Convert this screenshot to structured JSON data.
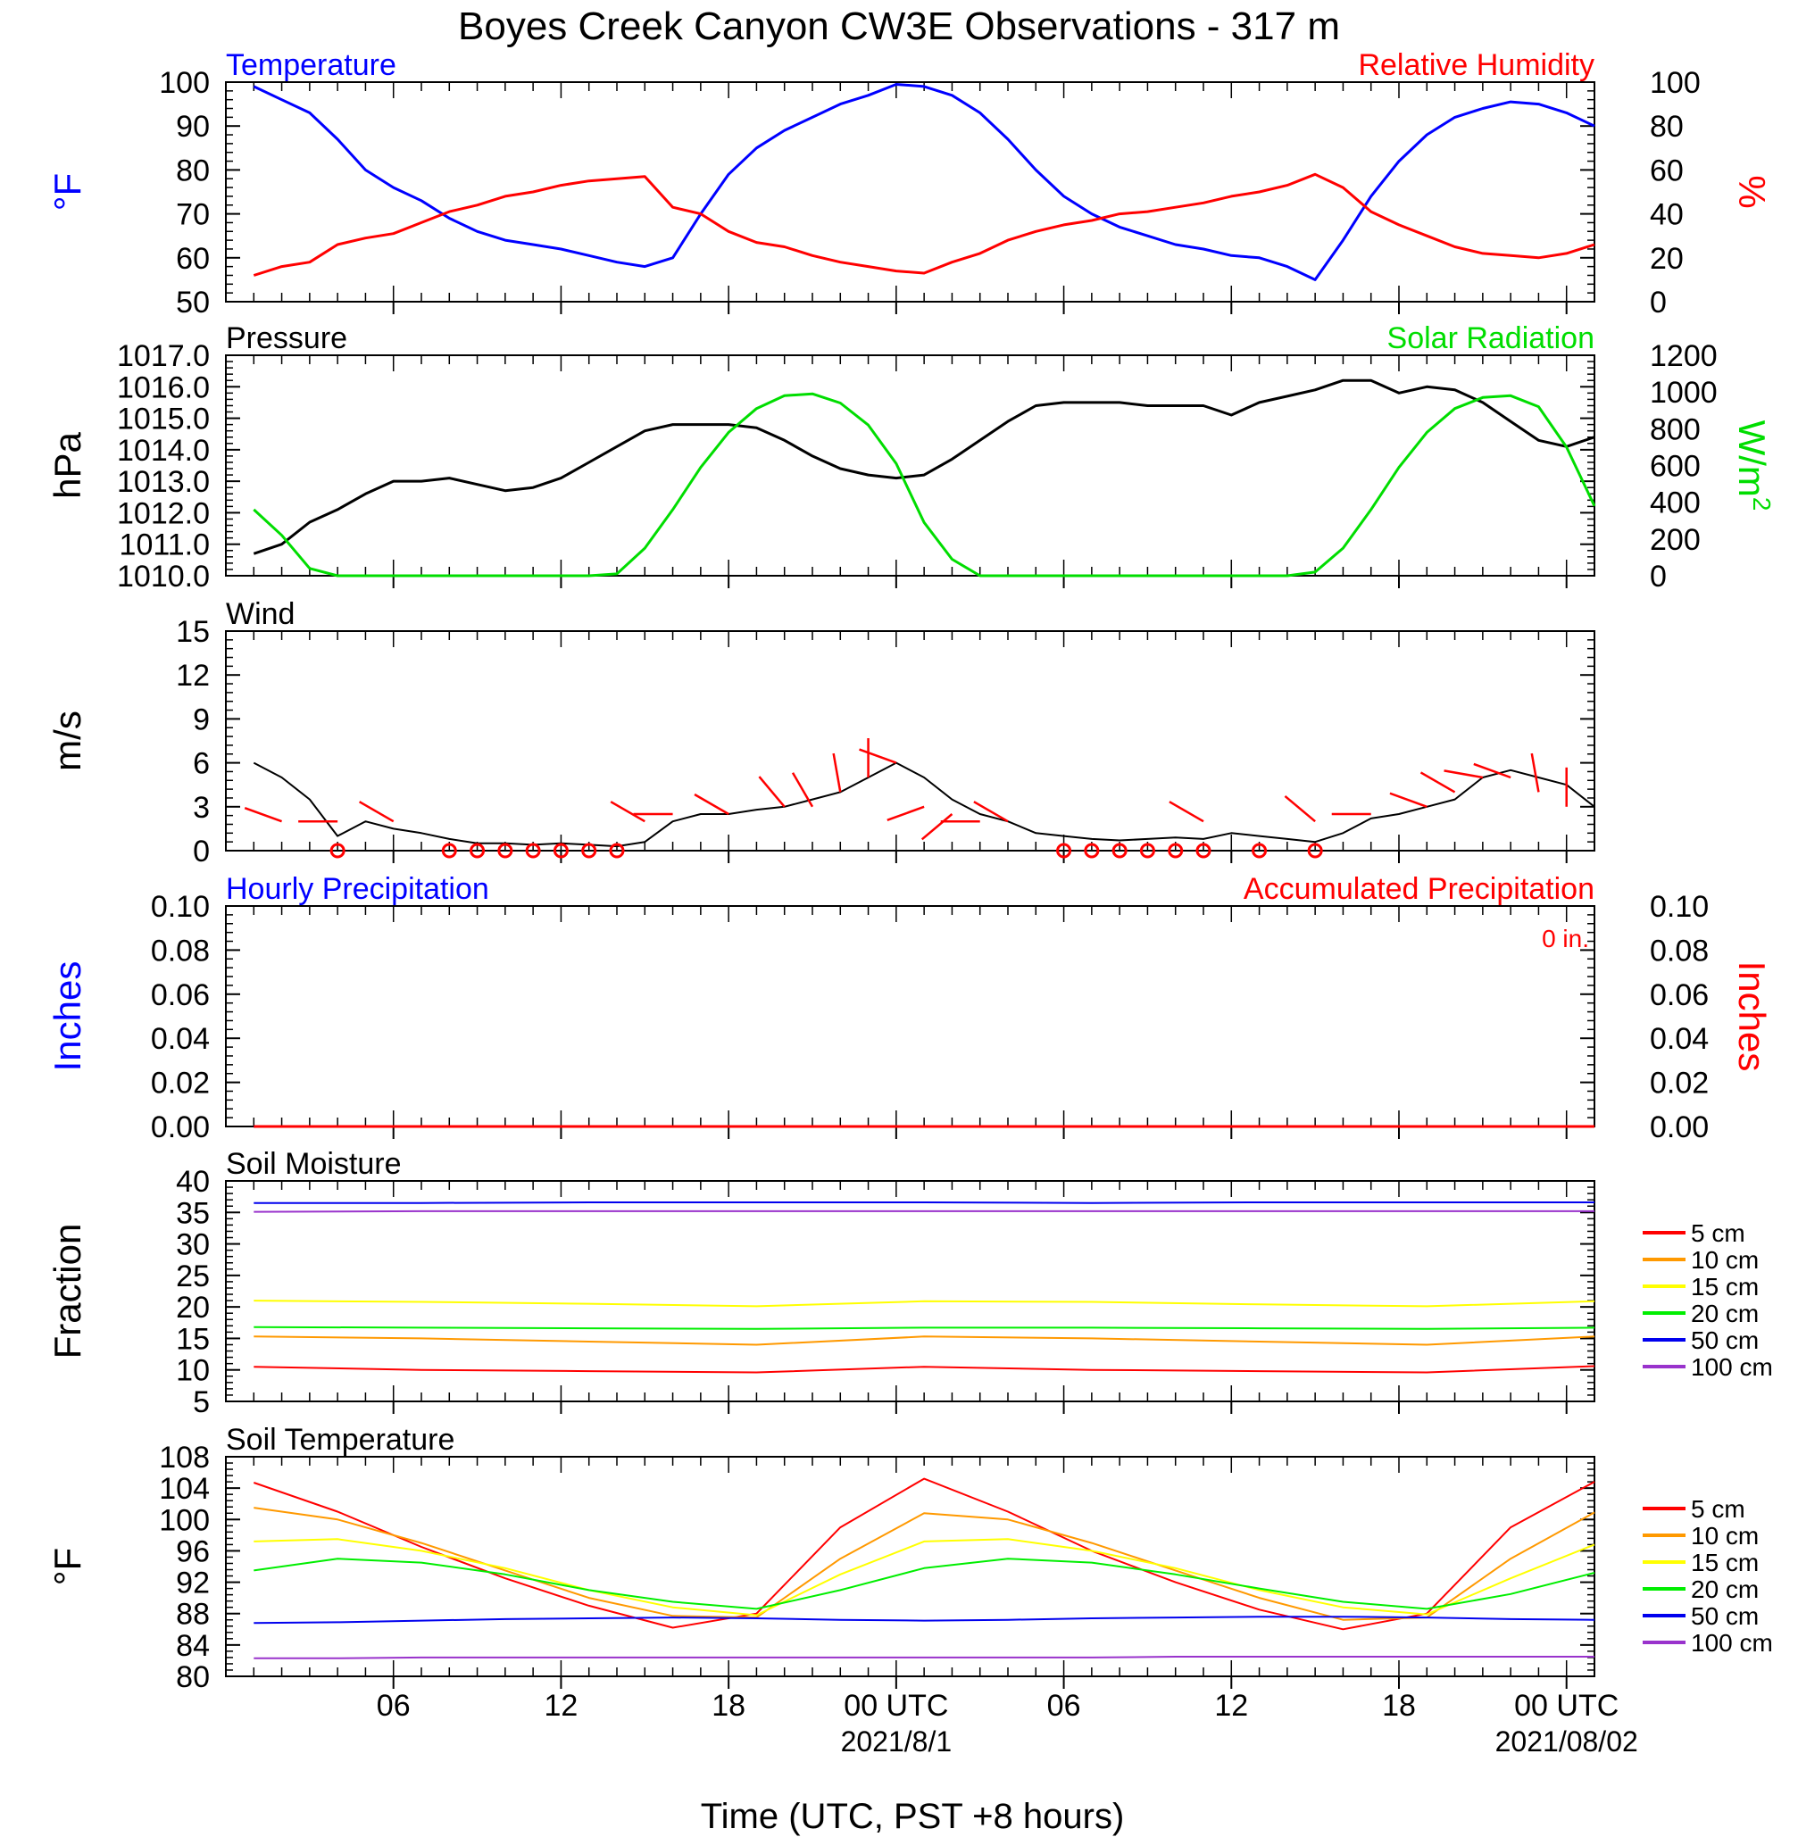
{
  "page": {
    "title": "Boyes Creek Canyon CW3E Observations - 317 m",
    "x_axis_label": "Time (UTC, PST +8 hours)",
    "x_ticks": [
      "06",
      "12",
      "18",
      "00 UTC",
      "06",
      "12",
      "18",
      "00 UTC"
    ],
    "x_date_labels": [
      "2021/8/1",
      "2021/08/02"
    ]
  },
  "colors": {
    "temperature": "#0000ff",
    "humidity": "#ff0000",
    "pressure": "#000000",
    "solar": "#00dd00",
    "wind": "#000000",
    "wind_barb": "#ff0000",
    "soil_5": "#ff0000",
    "soil_10": "#ff9900",
    "soil_15": "#ffff00",
    "soil_20": "#00ee00",
    "soil_50": "#0000ee",
    "soil_100": "#9933cc"
  },
  "chart_data": [
    {
      "id": "temp_rh",
      "type": "line",
      "title_left": "Temperature",
      "title_right": "Relative Humidity",
      "ylabel_left": "°F",
      "ylabel_right": "%",
      "ylim_left": [
        50,
        100
      ],
      "ylim_right": [
        0,
        100
      ],
      "yticks_left": [
        "100",
        "90",
        "80",
        "70",
        "60",
        "50"
      ],
      "yticks_right": [
        "100",
        "80",
        "60",
        "40",
        "20",
        "0"
      ],
      "x_hours": [
        1,
        2,
        3,
        4,
        5,
        6,
        7,
        8,
        9,
        10,
        11,
        12,
        13,
        14,
        15,
        16,
        17,
        18,
        19,
        20,
        21,
        22,
        23,
        24,
        25,
        26,
        27,
        28,
        29,
        30,
        31,
        32,
        33,
        34,
        35,
        36,
        37,
        38,
        39,
        40,
        41,
        42,
        43,
        44,
        45,
        46,
        47,
        48,
        49
      ],
      "series": [
        {
          "name": "Temperature",
          "axis": "left",
          "values": [
            99,
            96,
            93,
            87,
            80,
            76,
            73,
            69,
            66,
            64,
            63,
            62,
            60.5,
            59,
            58,
            60,
            70,
            79,
            85,
            89,
            92,
            95,
            97,
            99.5,
            99,
            97,
            93,
            87,
            80,
            74,
            70,
            67,
            65,
            63,
            62,
            60.5,
            60,
            58,
            55,
            64,
            74,
            82,
            88,
            92,
            94,
            95.5,
            95,
            93,
            90
          ]
        },
        {
          "name": "Relative Humidity",
          "axis": "right",
          "values": [
            12,
            16,
            18,
            26,
            29,
            31,
            36,
            41,
            44,
            48,
            50,
            53,
            55,
            56,
            57,
            43,
            40,
            32,
            27,
            25,
            21,
            18,
            16,
            14,
            13,
            18,
            22,
            28,
            32,
            35,
            37,
            40,
            41,
            43,
            45,
            48,
            50,
            53,
            58,
            52,
            41,
            35,
            30,
            25,
            22,
            21,
            20,
            22,
            26
          ]
        }
      ]
    },
    {
      "id": "pressure_solar",
      "type": "line",
      "title_left": "Pressure",
      "title_right": "Solar Radiation",
      "ylabel_left": "hPa",
      "ylabel_right": "W/m",
      "ylabel_right_sup": "2",
      "ylim_left": [
        1010,
        1017
      ],
      "ylim_right": [
        0,
        1200
      ],
      "yticks_left": [
        "1017.0",
        "1016.0",
        "1015.0",
        "1014.0",
        "1013.0",
        "1012.0",
        "1011.0",
        "1010.0"
      ],
      "yticks_right": [
        "1200",
        "1000",
        "800",
        "600",
        "400",
        "200",
        "0"
      ],
      "x_hours": [
        1,
        2,
        3,
        4,
        5,
        6,
        7,
        8,
        9,
        10,
        11,
        12,
        13,
        14,
        15,
        16,
        17,
        18,
        19,
        20,
        21,
        22,
        23,
        24,
        25,
        26,
        27,
        28,
        29,
        30,
        31,
        32,
        33,
        34,
        35,
        36,
        37,
        38,
        39,
        40,
        41,
        42,
        43,
        44,
        45,
        46,
        47,
        48,
        49
      ],
      "series": [
        {
          "name": "Pressure",
          "axis": "left",
          "values": [
            1010.7,
            1011.0,
            1011.7,
            1012.1,
            1012.6,
            1013.0,
            1013.0,
            1013.1,
            1012.9,
            1012.7,
            1012.8,
            1013.1,
            1013.6,
            1014.1,
            1014.6,
            1014.8,
            1014.8,
            1014.8,
            1014.7,
            1014.3,
            1013.8,
            1013.4,
            1013.2,
            1013.1,
            1013.2,
            1013.7,
            1014.3,
            1014.9,
            1015.4,
            1015.5,
            1015.5,
            1015.5,
            1015.4,
            1015.4,
            1015.4,
            1015.1,
            1015.5,
            1015.7,
            1015.9,
            1016.2,
            1016.2,
            1015.8,
            1016.0,
            1015.9,
            1015.5,
            1014.9,
            1014.3,
            1014.1,
            1014.4
          ]
        },
        {
          "name": "Solar Radiation",
          "axis": "right",
          "values": [
            360,
            220,
            40,
            0,
            0,
            0,
            0,
            0,
            0,
            0,
            0,
            0,
            0,
            10,
            150,
            360,
            590,
            780,
            910,
            980,
            990,
            940,
            820,
            610,
            290,
            90,
            0,
            0,
            0,
            0,
            0,
            0,
            0,
            0,
            0,
            0,
            0,
            0,
            20,
            150,
            360,
            590,
            780,
            910,
            970,
            980,
            920,
            700,
            380
          ]
        }
      ]
    },
    {
      "id": "wind",
      "type": "line",
      "title_left": "Wind",
      "ylabel_left": "m/s",
      "ylim_left": [
        0,
        15
      ],
      "yticks_left": [
        "15",
        "12",
        "9",
        "6",
        "3",
        "0"
      ],
      "x_hours": [
        1,
        2,
        3,
        4,
        5,
        6,
        7,
        8,
        9,
        10,
        11,
        12,
        13,
        14,
        15,
        16,
        17,
        18,
        19,
        20,
        21,
        22,
        23,
        24,
        25,
        26,
        27,
        28,
        29,
        30,
        31,
        32,
        33,
        34,
        35,
        36,
        37,
        38,
        39,
        40,
        41,
        42,
        43,
        44,
        45,
        46,
        47,
        48,
        49
      ],
      "series": [
        {
          "name": "Wind Speed",
          "axis": "left",
          "values": [
            6,
            5,
            3.5,
            1,
            2,
            1.5,
            1.2,
            0.8,
            0.5,
            0.5,
            0.4,
            0.5,
            0.4,
            0.3,
            0.6,
            2,
            2.5,
            2.5,
            2.8,
            3,
            3.5,
            4,
            5,
            6,
            5,
            3.5,
            2.5,
            2,
            1.2,
            1,
            0.8,
            0.7,
            0.8,
            0.9,
            0.8,
            1.2,
            1,
            0.8,
            0.6,
            1.2,
            2.2,
            2.5,
            3,
            3.5,
            5,
            5.5,
            5,
            4.5,
            3
          ]
        }
      ],
      "calm_markers_hours": [
        4,
        8,
        9,
        10,
        11,
        12,
        13,
        14,
        30,
        31,
        32,
        33,
        34,
        35,
        37,
        39
      ],
      "barbs": [
        {
          "hour": 2,
          "speed": 2,
          "dir_deg": 290
        },
        {
          "hour": 4,
          "speed": 2,
          "dir_deg": 270
        },
        {
          "hour": 6,
          "speed": 2,
          "dir_deg": 300
        },
        {
          "hour": 15,
          "speed": 2,
          "dir_deg": 300
        },
        {
          "hour": 16,
          "speed": 2.5,
          "dir_deg": 270
        },
        {
          "hour": 18,
          "speed": 2.5,
          "dir_deg": 300
        },
        {
          "hour": 20,
          "speed": 3,
          "dir_deg": 320
        },
        {
          "hour": 21,
          "speed": 3,
          "dir_deg": 330
        },
        {
          "hour": 22,
          "speed": 4,
          "dir_deg": 350
        },
        {
          "hour": 23,
          "speed": 5,
          "dir_deg": 0
        },
        {
          "hour": 24,
          "speed": 6,
          "dir_deg": 290
        },
        {
          "hour": 25,
          "speed": 3,
          "dir_deg": 250
        },
        {
          "hour": 26,
          "speed": 2.5,
          "dir_deg": 230
        },
        {
          "hour": 27,
          "speed": 2,
          "dir_deg": 270
        },
        {
          "hour": 28,
          "speed": 2,
          "dir_deg": 300
        },
        {
          "hour": 35,
          "speed": 2,
          "dir_deg": 300
        },
        {
          "hour": 39,
          "speed": 2,
          "dir_deg": 310
        },
        {
          "hour": 41,
          "speed": 2.5,
          "dir_deg": 270
        },
        {
          "hour": 43,
          "speed": 3,
          "dir_deg": 290
        },
        {
          "hour": 44,
          "speed": 4,
          "dir_deg": 300
        },
        {
          "hour": 45,
          "speed": 5,
          "dir_deg": 280
        },
        {
          "hour": 46,
          "speed": 5,
          "dir_deg": 290
        },
        {
          "hour": 47,
          "speed": 4,
          "dir_deg": 350
        },
        {
          "hour": 48,
          "speed": 3,
          "dir_deg": 0
        }
      ]
    },
    {
      "id": "precip",
      "type": "line",
      "title_left": "Hourly Precipitation",
      "title_right": "Accumulated Precipitation",
      "accum_note": "0 in.",
      "ylabel_left": "Inches",
      "ylabel_right": "Inches",
      "ylim_left": [
        0,
        0.1
      ],
      "ylim_right": [
        0,
        0.1
      ],
      "yticks_left": [
        "0.10",
        "0.08",
        "0.06",
        "0.04",
        "0.02",
        "0.00"
      ],
      "yticks_right": [
        "0.10",
        "0.08",
        "0.06",
        "0.04",
        "0.02",
        "0.00"
      ],
      "x_hours": [
        1,
        49
      ],
      "series": [
        {
          "name": "Hourly Precipitation",
          "axis": "left",
          "values": [
            0,
            0
          ]
        },
        {
          "name": "Accumulated Precipitation",
          "axis": "right",
          "values": [
            0,
            0
          ]
        }
      ]
    },
    {
      "id": "soil_moisture",
      "type": "line",
      "title_left": "Soil Moisture",
      "ylabel_left": "Fraction",
      "ylim_left": [
        5,
        40
      ],
      "yticks_left": [
        "40",
        "35",
        "30",
        "25",
        "20",
        "15",
        "10",
        "5"
      ],
      "x_hours": [
        1,
        7,
        13,
        19,
        25,
        31,
        37,
        43,
        49
      ],
      "series": [
        {
          "name": "5 cm",
          "values": [
            10.5,
            10,
            9.8,
            9.6,
            10.5,
            10.0,
            9.8,
            9.6,
            10.6
          ]
        },
        {
          "name": "10 cm",
          "values": [
            15.3,
            15.0,
            14.5,
            14.0,
            15.3,
            15.0,
            14.5,
            14.0,
            15.3
          ]
        },
        {
          "name": "15 cm",
          "values": [
            21.0,
            20.8,
            20.5,
            20.1,
            20.9,
            20.8,
            20.4,
            20.1,
            20.9
          ]
        },
        {
          "name": "20 cm",
          "values": [
            16.8,
            16.7,
            16.6,
            16.5,
            16.7,
            16.7,
            16.6,
            16.5,
            16.7
          ]
        },
        {
          "name": "50 cm",
          "values": [
            36.5,
            36.5,
            36.6,
            36.6,
            36.6,
            36.5,
            36.6,
            36.6,
            36.6
          ]
        },
        {
          "name": "100 cm",
          "values": [
            35.1,
            35.2,
            35.2,
            35.2,
            35.2,
            35.2,
            35.2,
            35.2,
            35.2
          ]
        }
      ],
      "legend": [
        "5 cm",
        "10 cm",
        "15 cm",
        "20 cm",
        "50 cm",
        "100 cm"
      ]
    },
    {
      "id": "soil_temperature",
      "type": "line",
      "title_left": "Soil Temperature",
      "ylabel_left": "°F",
      "ylim_left": [
        80,
        108
      ],
      "yticks_left": [
        "108",
        "104",
        "100",
        "96",
        "92",
        "88",
        "84",
        "80"
      ],
      "x_hours": [
        1,
        4,
        7,
        10,
        13,
        16,
        19,
        22,
        25,
        28,
        31,
        34,
        37,
        40,
        43,
        46,
        49
      ],
      "series": [
        {
          "name": "5 cm",
          "values": [
            104.7,
            101,
            96.5,
            92.5,
            89,
            86.2,
            88,
            99,
            105.2,
            101,
            96,
            92,
            88.5,
            86,
            88,
            99,
            104.8
          ]
        },
        {
          "name": "10 cm",
          "values": [
            101.5,
            100,
            97,
            93.5,
            90,
            87.7,
            87.5,
            95,
            100.8,
            100,
            97,
            93.5,
            90,
            87.2,
            87.5,
            95,
            100.9
          ]
        },
        {
          "name": "15 cm",
          "values": [
            97.2,
            97.5,
            96,
            93.8,
            91,
            88.8,
            87.8,
            93,
            97.2,
            97.5,
            96,
            93.8,
            91,
            88.8,
            87.9,
            92.5,
            96.8
          ]
        },
        {
          "name": "20 cm",
          "values": [
            93.5,
            95,
            94.5,
            93,
            91,
            89.5,
            88.6,
            91,
            93.8,
            95,
            94.5,
            93,
            91.2,
            89.5,
            88.6,
            90.5,
            93.2
          ]
        },
        {
          "name": "50 cm",
          "values": [
            86.8,
            86.9,
            87.1,
            87.3,
            87.4,
            87.5,
            87.4,
            87.2,
            87.1,
            87.2,
            87.4,
            87.5,
            87.6,
            87.6,
            87.5,
            87.3,
            87.2
          ]
        },
        {
          "name": "100 cm",
          "values": [
            82.3,
            82.3,
            82.4,
            82.4,
            82.4,
            82.4,
            82.4,
            82.4,
            82.4,
            82.4,
            82.4,
            82.5,
            82.5,
            82.5,
            82.5,
            82.5,
            82.5
          ]
        }
      ],
      "legend": [
        "5 cm",
        "10 cm",
        "15 cm",
        "20 cm",
        "50 cm",
        "100 cm"
      ]
    }
  ]
}
